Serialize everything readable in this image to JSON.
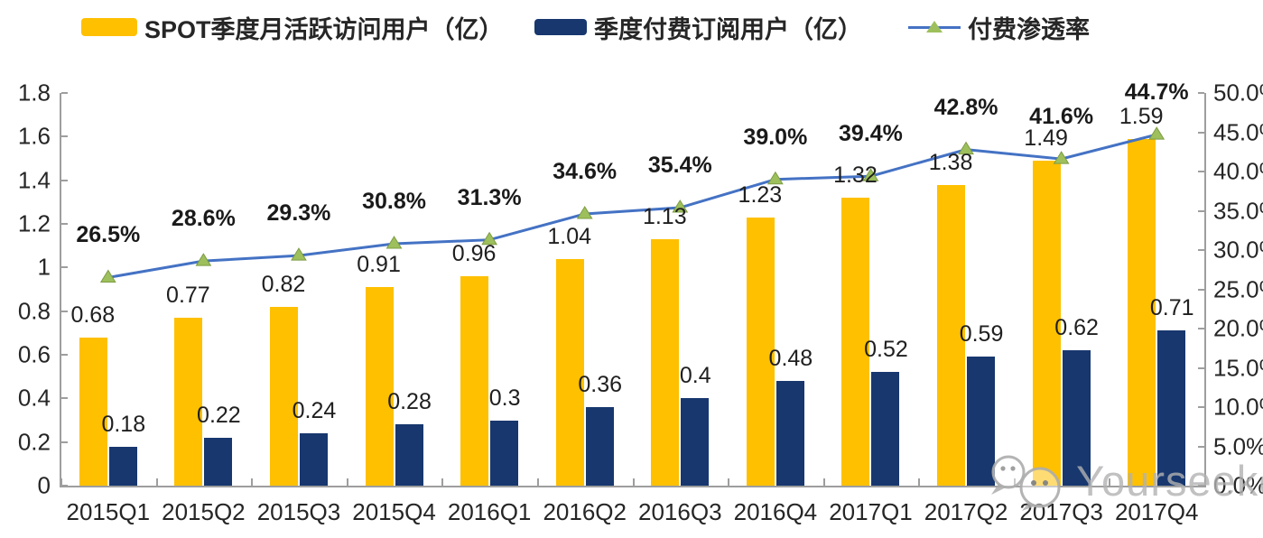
{
  "legend": {
    "items": [
      {
        "label": "SPOT季度月活跃访问用户（亿）",
        "swatch": "yellow-bar",
        "color": "#FFC000"
      },
      {
        "label": "季度付费订阅用户（亿）",
        "swatch": "navy-bar",
        "color": "#17376E"
      },
      {
        "label": "付费渗透率",
        "swatch": "line-with-triangle-marker",
        "color": "#4472C4"
      }
    ]
  },
  "colors": {
    "mau_bar": "#FFC000",
    "subs_bar": "#17376E",
    "line": "#4472C4",
    "marker": "#9DC05C",
    "axis": "#9e9e9e",
    "text": "#262626",
    "watermark": "#B2B2B2"
  },
  "chart_data": {
    "type": "bar+line combo",
    "categories": [
      "2015Q1",
      "2015Q2",
      "2015Q3",
      "2015Q4",
      "2016Q1",
      "2016Q2",
      "2016Q3",
      "2016Q4",
      "2017Q1",
      "2017Q2",
      "2017Q3",
      "2017Q4"
    ],
    "series": [
      {
        "name": "SPOT季度月活跃访问用户（亿）",
        "type": "bar",
        "axis": "left",
        "values": [
          0.68,
          0.77,
          0.82,
          0.91,
          0.96,
          1.04,
          1.13,
          1.23,
          1.32,
          1.38,
          1.49,
          1.59
        ],
        "labels": [
          "0.68",
          "0.77",
          "0.82",
          "0.91",
          "0.96",
          "1.04",
          "1.13",
          "1.23",
          "1.32",
          "1.38",
          "1.49",
          "1.59"
        ]
      },
      {
        "name": "季度付费订阅用户（亿）",
        "type": "bar",
        "axis": "left",
        "values": [
          0.18,
          0.22,
          0.24,
          0.28,
          0.3,
          0.36,
          0.4,
          0.48,
          0.52,
          0.59,
          0.62,
          0.71
        ],
        "labels": [
          "0.18",
          "0.22",
          "0.24",
          "0.28",
          "0.3",
          "0.36",
          "0.4",
          "0.48",
          "0.52",
          "0.59",
          "0.62",
          "0.71"
        ]
      },
      {
        "name": "付费渗透率",
        "type": "line",
        "axis": "right",
        "values": [
          26.5,
          28.6,
          29.3,
          30.8,
          31.3,
          34.6,
          35.4,
          39.0,
          39.4,
          42.8,
          41.6,
          44.7
        ],
        "labels": [
          "26.5%",
          "28.6%",
          "29.3%",
          "30.8%",
          "31.3%",
          "34.6%",
          "35.4%",
          "39.0%",
          "39.4%",
          "42.8%",
          "41.6%",
          "44.7%"
        ]
      }
    ],
    "left_axis": {
      "min": 0,
      "max": 1.8,
      "ticks": [
        "1.8",
        "1.6",
        "1.4",
        "1.2",
        "1",
        "0.8",
        "0.6",
        "0.4",
        "0.2",
        "0"
      ]
    },
    "right_axis": {
      "min": 0,
      "max": 50,
      "ticks": [
        "50.0%",
        "45.0%",
        "40.0%",
        "35.0%",
        "30.0%",
        "25.0%",
        "20.0%",
        "15.0%",
        "10.0%",
        "5.0%",
        "0.0%"
      ]
    },
    "grid": "off",
    "legend_position": "top"
  },
  "watermark": {
    "text": "Yourseeker",
    "icon": "wechat-chat-bubbles-icon"
  }
}
